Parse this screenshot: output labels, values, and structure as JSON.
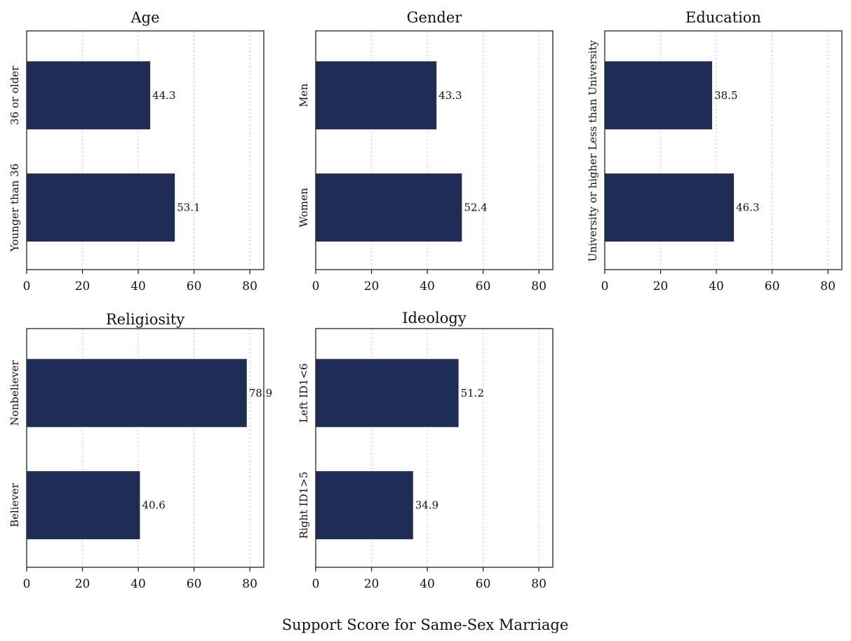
{
  "figure": {
    "xlabel": "Support Score for Same-Sex Marriage"
  },
  "style": {
    "bar_color": "#1f2d54",
    "frame_color": "#222222",
    "grid_color": "#bbbbbb",
    "background": "#ffffff"
  },
  "chart_data": [
    {
      "type": "bar",
      "orientation": "horizontal",
      "title": "Age",
      "categories": [
        "36 or older",
        "Younger than 36"
      ],
      "values": [
        44.3,
        53.1
      ],
      "value_labels": [
        "44.3",
        "53.1"
      ],
      "xlim": [
        0,
        85
      ],
      "xticks": [
        0,
        20,
        40,
        60,
        80
      ],
      "grid": "vertical-dotted"
    },
    {
      "type": "bar",
      "orientation": "horizontal",
      "title": "Gender",
      "categories": [
        "Men",
        "Women"
      ],
      "values": [
        43.3,
        52.4
      ],
      "value_labels": [
        "43.3",
        "52.4"
      ],
      "xlim": [
        0,
        85
      ],
      "xticks": [
        0,
        20,
        40,
        60,
        80
      ],
      "grid": "vertical-dotted"
    },
    {
      "type": "bar",
      "orientation": "horizontal",
      "title": "Education",
      "categories": [
        "Less than University",
        "University or higher"
      ],
      "values": [
        38.5,
        46.3
      ],
      "value_labels": [
        "38.5",
        "46.3"
      ],
      "xlim": [
        0,
        85
      ],
      "xticks": [
        0,
        20,
        40,
        60,
        80
      ],
      "grid": "vertical-dotted"
    },
    {
      "type": "bar",
      "orientation": "horizontal",
      "title": "Religiosity",
      "categories": [
        "Nonbeliever",
        "Believer"
      ],
      "values": [
        78.9,
        40.6
      ],
      "value_labels": [
        "78.9",
        "40.6"
      ],
      "xlim": [
        0,
        85
      ],
      "xticks": [
        0,
        20,
        40,
        60,
        80
      ],
      "grid": "vertical-dotted"
    },
    {
      "type": "bar",
      "orientation": "horizontal",
      "title": "Ideology",
      "categories": [
        "Left ID1<6",
        "Right ID1>5"
      ],
      "values": [
        51.2,
        34.9
      ],
      "value_labels": [
        "51.2",
        "34.9"
      ],
      "xlim": [
        0,
        85
      ],
      "xticks": [
        0,
        20,
        40,
        60,
        80
      ],
      "grid": "vertical-dotted"
    }
  ]
}
